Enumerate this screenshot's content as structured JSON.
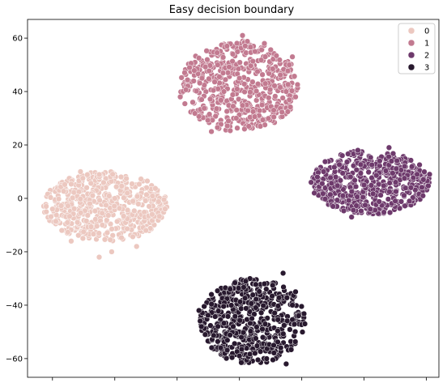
{
  "chart_data": {
    "type": "scatter",
    "title": "Easy decision boundary",
    "xlabel": "",
    "ylabel": "",
    "xlim": [
      -68,
      64
    ],
    "ylim": [
      -67,
      67
    ],
    "xticks": [
      -60,
      -40,
      -20,
      0,
      20,
      40,
      60
    ],
    "yticks": [
      -60,
      -40,
      -20,
      0,
      20,
      40,
      60
    ],
    "grid": false,
    "legend": {
      "position": "top-right",
      "entries": [
        "0",
        "1",
        "2",
        "3"
      ]
    },
    "colors": {
      "0": "#ecc8c0",
      "1": "#c27a90",
      "2": "#6e3a6c",
      "3": "#28192e"
    },
    "marker_edge": "#ffffff",
    "series": [
      {
        "name": "0",
        "cluster": {
          "center": [
            -43,
            -3
          ],
          "half_width": [
            20,
            13
          ],
          "count": 520
        },
        "points": [
          [
            -62,
            -3
          ],
          [
            -60,
            -4
          ],
          [
            -57,
            -12
          ],
          [
            -54,
            -16
          ],
          [
            -51,
            10
          ],
          [
            -49,
            4
          ],
          [
            -45,
            -22
          ],
          [
            -41,
            -20
          ],
          [
            -38,
            8
          ],
          [
            -36,
            2
          ],
          [
            -33,
            -18
          ],
          [
            -30,
            -12
          ],
          [
            -28,
            -6
          ],
          [
            -29,
            -3
          ],
          [
            -40,
            0
          ],
          [
            -48,
            -2
          ],
          [
            -44,
            -10
          ],
          [
            -52,
            -9
          ]
        ]
      },
      {
        "name": "1",
        "cluster": {
          "center": [
            0,
            42
          ],
          "half_width": [
            19,
            17
          ],
          "count": 520
        },
        "points": [
          [
            -19,
            38
          ],
          [
            -15,
            36
          ],
          [
            -12,
            45
          ],
          [
            -9,
            25
          ],
          [
            -7,
            50
          ],
          [
            -4,
            57
          ],
          [
            -1,
            30
          ],
          [
            1,
            61
          ],
          [
            3,
            27
          ],
          [
            5,
            55
          ],
          [
            8,
            58
          ],
          [
            11,
            33
          ],
          [
            15,
            40
          ],
          [
            16,
            50
          ],
          [
            17,
            53
          ],
          [
            18,
            38
          ],
          [
            0,
            45
          ],
          [
            -5,
            40
          ]
        ]
      },
      {
        "name": "2",
        "cluster": {
          "center": [
            42,
            6
          ],
          "half_width": [
            19,
            12
          ],
          "count": 520
        },
        "points": [
          [
            23,
            6
          ],
          [
            24,
            2
          ],
          [
            25,
            8
          ],
          [
            27,
            10
          ],
          [
            30,
            -3
          ],
          [
            33,
            16
          ],
          [
            36,
            -7
          ],
          [
            38,
            18
          ],
          [
            42,
            -4
          ],
          [
            45,
            14
          ],
          [
            48,
            19
          ],
          [
            50,
            -1
          ],
          [
            53,
            12
          ],
          [
            55,
            4
          ],
          [
            57,
            9
          ],
          [
            59,
            7
          ],
          [
            61,
            9
          ],
          [
            40,
            5
          ]
        ]
      },
      {
        "name": "3",
        "cluster": {
          "center": [
            4,
            -46
          ],
          "half_width": [
            17,
            16
          ],
          "count": 520
        },
        "points": [
          [
            -13,
            -42
          ],
          [
            -11,
            -51
          ],
          [
            -9,
            -36
          ],
          [
            -6,
            -56
          ],
          [
            -3,
            -34
          ],
          [
            0,
            -59
          ],
          [
            2,
            -31
          ],
          [
            5,
            -58
          ],
          [
            8,
            -32
          ],
          [
            11,
            -55
          ],
          [
            14,
            -28
          ],
          [
            15,
            -62
          ],
          [
            17,
            -40
          ],
          [
            19,
            -44
          ],
          [
            21,
            -47
          ],
          [
            18,
            -35
          ],
          [
            4,
            -45
          ],
          [
            -2,
            -48
          ]
        ]
      }
    ]
  }
}
